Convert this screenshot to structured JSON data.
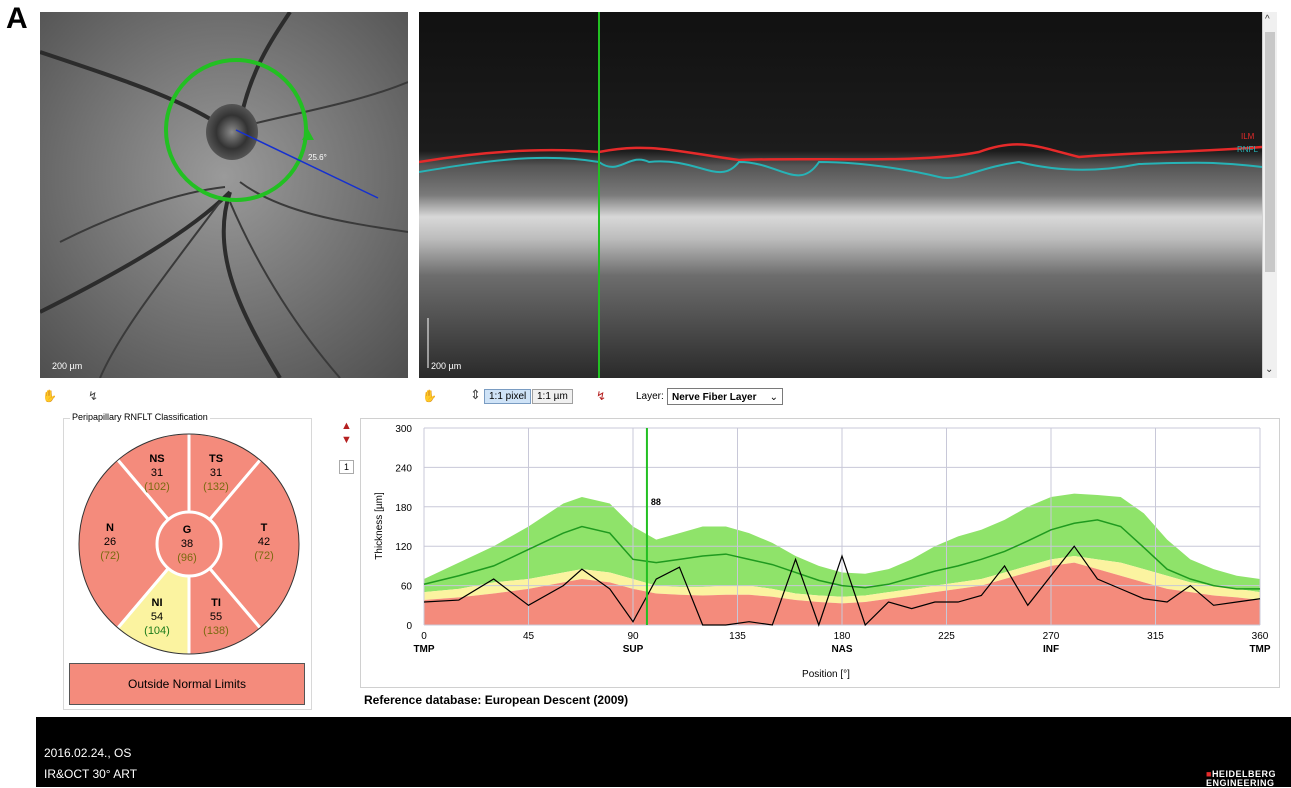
{
  "panel_label": "A",
  "ir": {
    "scale_label": "200 µm",
    "angle_label": "25.6°"
  },
  "oct": {
    "scale_label": "200 µm",
    "layer_labels": {
      "ilm": "ILM",
      "rnfl": "RNFL"
    }
  },
  "toolbar": {
    "pixel_btn": "1:1 pixel",
    "um_btn": "1:1 µm",
    "layer_label": "Layer:",
    "layer_value": "Nerve Fiber Layer"
  },
  "classification": {
    "title": "Peripapillary RNFLT Classification",
    "result": "Outside Normal Limits",
    "sectors": [
      {
        "key": "NS",
        "value": "31",
        "normal": "(102)",
        "status": "outside"
      },
      {
        "key": "TS",
        "value": "31",
        "normal": "(132)",
        "status": "outside"
      },
      {
        "key": "N",
        "value": "26",
        "normal": "(72)",
        "status": "outside"
      },
      {
        "key": "G",
        "value": "38",
        "normal": "(96)",
        "status": "outside"
      },
      {
        "key": "T",
        "value": "42",
        "normal": "(72)",
        "status": "outside"
      },
      {
        "key": "NI",
        "value": "54",
        "normal": "(104)",
        "status": "borderline"
      },
      {
        "key": "TI",
        "value": "55",
        "normal": "(138)",
        "status": "outside"
      }
    ],
    "colors": {
      "outside": "#f48b7c",
      "borderline": "#fbf3a0",
      "within": "#8fe36a"
    }
  },
  "page_indicator": "1",
  "chart_data": {
    "type": "line",
    "ylabel": "Thickness [µm]",
    "xlabel": "Position [°]",
    "xlim": [
      0,
      360
    ],
    "ylim": [
      0,
      300
    ],
    "xticks": [
      0,
      45,
      90,
      135,
      180,
      225,
      270,
      315,
      360
    ],
    "yticks": [
      0,
      60,
      120,
      180,
      240,
      300
    ],
    "region_labels": [
      {
        "x": 0,
        "label": "TMP"
      },
      {
        "x": 90,
        "label": "SUP"
      },
      {
        "x": 180,
        "label": "NAS"
      },
      {
        "x": 270,
        "label": "INF"
      },
      {
        "x": 360,
        "label": "TMP"
      }
    ],
    "cursor": {
      "x": 96,
      "label": "88"
    },
    "x": [
      0,
      15,
      30,
      45,
      60,
      68,
      80,
      90,
      100,
      110,
      120,
      130,
      140,
      150,
      160,
      170,
      180,
      190,
      200,
      210,
      220,
      230,
      240,
      250,
      260,
      270,
      280,
      290,
      300,
      310,
      320,
      330,
      340,
      350,
      360
    ],
    "bands": {
      "p99": [
        70,
        95,
        120,
        150,
        185,
        195,
        185,
        150,
        130,
        140,
        150,
        150,
        140,
        125,
        105,
        90,
        80,
        78,
        85,
        100,
        120,
        135,
        145,
        160,
        180,
        195,
        200,
        198,
        195,
        170,
        130,
        100,
        85,
        75,
        70
      ],
      "p95": [
        50,
        55,
        65,
        70,
        80,
        85,
        80,
        70,
        60,
        58,
        58,
        60,
        60,
        55,
        48,
        45,
        43,
        45,
        50,
        55,
        60,
        65,
        70,
        80,
        90,
        100,
        105,
        100,
        95,
        85,
        75,
        65,
        60,
        55,
        50
      ],
      "p5": [
        38,
        42,
        48,
        55,
        65,
        70,
        65,
        55,
        48,
        46,
        45,
        46,
        46,
        43,
        38,
        35,
        33,
        35,
        40,
        45,
        50,
        55,
        60,
        70,
        80,
        90,
        95,
        85,
        75,
        65,
        55,
        50,
        45,
        42,
        38
      ]
    },
    "series": [
      {
        "name": "normal",
        "color": "#1f9a1f",
        "values": [
          62,
          75,
          90,
          115,
          140,
          150,
          140,
          100,
          95,
          100,
          105,
          108,
          100,
          92,
          80,
          68,
          60,
          57,
          62,
          72,
          82,
          90,
          100,
          112,
          128,
          145,
          155,
          160,
          150,
          118,
          85,
          70,
          60,
          55,
          55
        ]
      },
      {
        "name": "patient",
        "color": "#000000",
        "values": [
          35,
          38,
          70,
          30,
          60,
          85,
          55,
          5,
          70,
          88,
          0,
          0,
          5,
          0,
          100,
          0,
          105,
          0,
          35,
          25,
          35,
          35,
          45,
          90,
          30,
          75,
          120,
          70,
          55,
          40,
          35,
          60,
          30,
          35,
          40
        ]
      }
    ]
  },
  "reference_db": "Reference database: European Descent (2009)",
  "footer": {
    "date": "2016.02.24., OS",
    "mode": "IR&OCT 30° ART",
    "logo_top": "HEIDELBERG",
    "logo_bottom": "ENGINEERING"
  }
}
